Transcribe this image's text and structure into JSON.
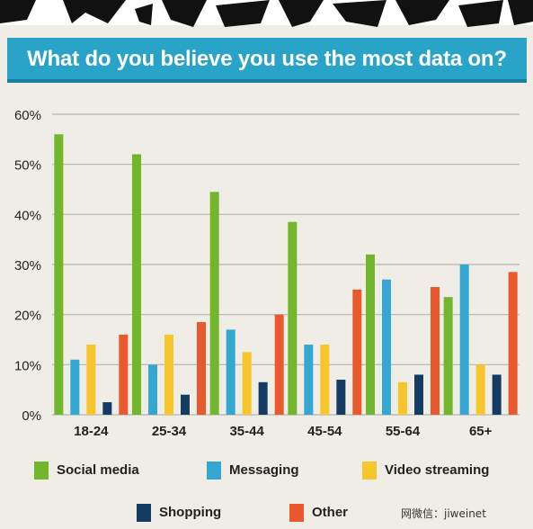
{
  "colors": {
    "title_bg": "#2aa3c9",
    "background": "#efede6",
    "social_media": "#72b62d",
    "messaging": "#34a7d2",
    "video_streaming": "#f7c52c",
    "shopping": "#143c63",
    "other": "#e85a2e"
  },
  "watermark": "网微信：jiweinet",
  "chart_data": {
    "type": "bar",
    "title": "What do you believe you use the most data on?",
    "categories": [
      "18-24",
      "25-34",
      "35-44",
      "45-54",
      "55-64",
      "65+"
    ],
    "series": [
      {
        "name": "Social media",
        "color": "#72b62d",
        "values": [
          56,
          52,
          44.5,
          38.5,
          32,
          23.5
        ]
      },
      {
        "name": "Messaging",
        "color": "#34a7d2",
        "values": [
          11,
          10,
          17,
          14,
          27,
          30
        ]
      },
      {
        "name": "Video streaming",
        "color": "#f7c52c",
        "values": [
          14,
          16,
          12.5,
          14,
          6.5,
          10
        ]
      },
      {
        "name": "Shopping",
        "color": "#143c63",
        "values": [
          2.5,
          4,
          6.5,
          7,
          8,
          8
        ]
      },
      {
        "name": "Other",
        "color": "#e85a2e",
        "values": [
          16,
          18.5,
          20,
          25,
          25.5,
          28.5
        ]
      }
    ],
    "y_ticks": [
      "0%",
      "10%",
      "20%",
      "30%",
      "40%",
      "50%",
      "60%"
    ],
    "ylim": [
      0,
      60
    ],
    "grid": true,
    "legend_position": "bottom"
  }
}
